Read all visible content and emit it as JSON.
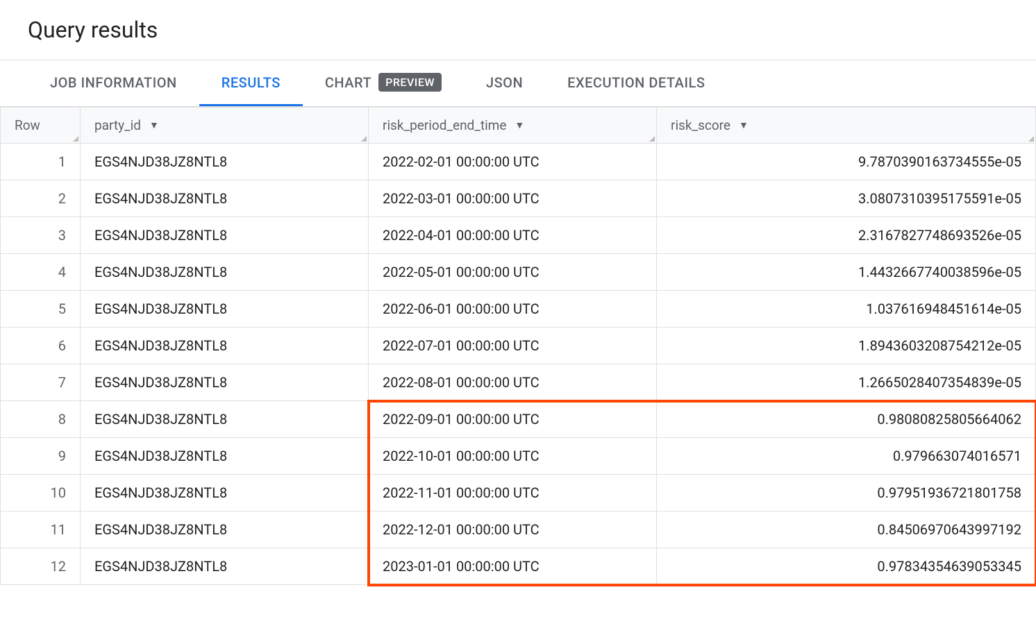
{
  "title": "Query results",
  "tabs": [
    {
      "label": "JOB INFORMATION",
      "active": false,
      "badge": null
    },
    {
      "label": "RESULTS",
      "active": true,
      "badge": null
    },
    {
      "label": "CHART",
      "active": false,
      "badge": "PREVIEW"
    },
    {
      "label": "JSON",
      "active": false,
      "badge": null
    },
    {
      "label": "EXECUTION DETAILS",
      "active": false,
      "badge": null
    }
  ],
  "table": {
    "columns": [
      {
        "key": "row",
        "label": "Row",
        "sortable": false,
        "align": "right",
        "cssClass": "col-row"
      },
      {
        "key": "party_id",
        "label": "party_id",
        "sortable": true,
        "align": "left",
        "cssClass": "col-party"
      },
      {
        "key": "risk_period_end_time",
        "label": "risk_period_end_time",
        "sortable": true,
        "align": "left",
        "cssClass": "col-time"
      },
      {
        "key": "risk_score",
        "label": "risk_score",
        "sortable": true,
        "align": "right",
        "cssClass": "col-score"
      }
    ],
    "rows": [
      {
        "row": "1",
        "party_id": "EGS4NJD38JZ8NTL8",
        "risk_period_end_time": "2022-02-01 00:00:00 UTC",
        "risk_score": "9.7870390163734555e-05"
      },
      {
        "row": "2",
        "party_id": "EGS4NJD38JZ8NTL8",
        "risk_period_end_time": "2022-03-01 00:00:00 UTC",
        "risk_score": "3.0807310395175591e-05"
      },
      {
        "row": "3",
        "party_id": "EGS4NJD38JZ8NTL8",
        "risk_period_end_time": "2022-04-01 00:00:00 UTC",
        "risk_score": "2.3167827748693526e-05"
      },
      {
        "row": "4",
        "party_id": "EGS4NJD38JZ8NTL8",
        "risk_period_end_time": "2022-05-01 00:00:00 UTC",
        "risk_score": "1.4432667740038596e-05"
      },
      {
        "row": "5",
        "party_id": "EGS4NJD38JZ8NTL8",
        "risk_period_end_time": "2022-06-01 00:00:00 UTC",
        "risk_score": "1.037616948451614e-05"
      },
      {
        "row": "6",
        "party_id": "EGS4NJD38JZ8NTL8",
        "risk_period_end_time": "2022-07-01 00:00:00 UTC",
        "risk_score": "1.8943603208754212e-05"
      },
      {
        "row": "7",
        "party_id": "EGS4NJD38JZ8NTL8",
        "risk_period_end_time": "2022-08-01 00:00:00 UTC",
        "risk_score": "1.2665028407354839e-05"
      },
      {
        "row": "8",
        "party_id": "EGS4NJD38JZ8NTL8",
        "risk_period_end_time": "2022-09-01 00:00:00 UTC",
        "risk_score": "0.98080825805664062"
      },
      {
        "row": "9",
        "party_id": "EGS4NJD38JZ8NTL8",
        "risk_period_end_time": "2022-10-01 00:00:00 UTC",
        "risk_score": "0.979663074016571"
      },
      {
        "row": "10",
        "party_id": "EGS4NJD38JZ8NTL8",
        "risk_period_end_time": "2022-11-01 00:00:00 UTC",
        "risk_score": "0.97951936721801758"
      },
      {
        "row": "11",
        "party_id": "EGS4NJD38JZ8NTL8",
        "risk_period_end_time": "2022-12-01 00:00:00 UTC",
        "risk_score": "0.84506970643997192"
      },
      {
        "row": "12",
        "party_id": "EGS4NJD38JZ8NTL8",
        "risk_period_end_time": "2023-01-01 00:00:00 UTC",
        "risk_score": "0.97834354639053345"
      }
    ]
  },
  "highlight": {
    "color": "#ff4500",
    "start_row_index": 7,
    "end_row_index": 11,
    "start_col_index": 2,
    "end_col_index": 3
  },
  "colors": {
    "accent": "#1a73e8",
    "text": "#202124",
    "muted": "#5f6368",
    "border": "#e0e0e0",
    "header_bg": "#f8f9fa",
    "badge_bg": "#5f6368",
    "highlight_border": "#ff4500"
  }
}
